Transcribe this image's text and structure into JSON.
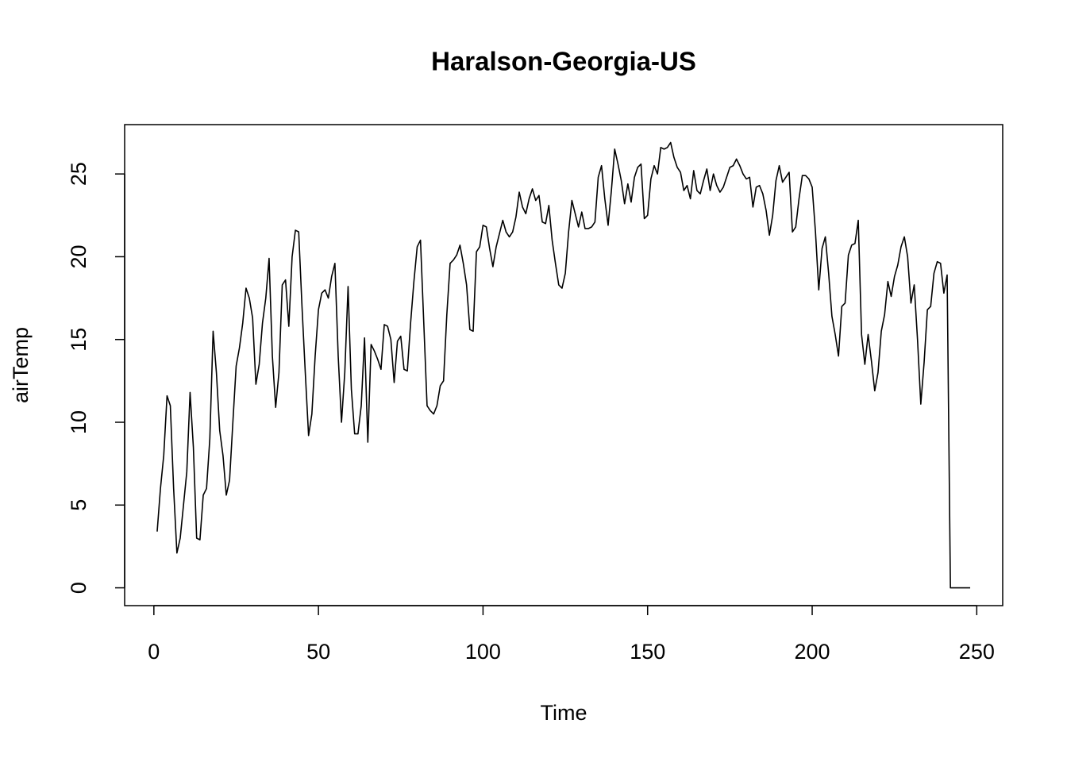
{
  "chart_data": {
    "type": "line",
    "title": "Haralson-Georgia-US",
    "x_label": "Time",
    "y_label": "airTemp",
    "x": [
      1,
      2,
      3,
      4,
      5,
      6,
      7,
      8,
      9,
      10,
      11,
      12,
      13,
      14,
      15,
      16,
      17,
      18,
      19,
      20,
      21,
      22,
      23,
      24,
      25,
      26,
      27,
      28,
      29,
      30,
      31,
      32,
      33,
      34,
      35,
      36,
      37,
      38,
      39,
      40,
      41,
      42,
      43,
      44,
      45,
      46,
      47,
      48,
      49,
      50,
      51,
      52,
      53,
      54,
      55,
      56,
      57,
      58,
      59,
      60,
      61,
      62,
      63,
      64,
      65,
      66,
      67,
      68,
      69,
      70,
      71,
      72,
      73,
      74,
      75,
      76,
      77,
      78,
      79,
      80,
      81,
      82,
      83,
      84,
      85,
      86,
      87,
      88,
      89,
      90,
      91,
      92,
      93,
      94,
      95,
      96,
      97,
      98,
      99,
      100,
      101,
      102,
      103,
      104,
      105,
      106,
      107,
      108,
      109,
      110,
      111,
      112,
      113,
      114,
      115,
      116,
      117,
      118,
      119,
      120,
      121,
      122,
      123,
      124,
      125,
      126,
      127,
      128,
      129,
      130,
      131,
      132,
      133,
      134,
      135,
      136,
      137,
      138,
      139,
      140,
      141,
      142,
      143,
      144,
      145,
      146,
      147,
      148,
      149,
      150,
      151,
      152,
      153,
      154,
      155,
      156,
      157,
      158,
      159,
      160,
      161,
      162,
      163,
      164,
      165,
      166,
      167,
      168,
      169,
      170,
      171,
      172,
      173,
      174,
      175,
      176,
      177,
      178,
      179,
      180,
      181,
      182,
      183,
      184,
      185,
      186,
      187,
      188,
      189,
      190,
      191,
      192,
      193,
      194,
      195,
      196,
      197,
      198,
      199,
      200,
      201,
      202,
      203,
      204,
      205,
      206,
      207,
      208,
      209,
      210,
      211,
      212,
      213,
      214,
      215,
      216,
      217,
      218,
      219,
      220,
      221,
      222,
      223,
      224,
      225,
      226,
      227,
      228,
      229,
      230,
      231,
      232,
      233,
      234,
      235,
      236,
      237,
      238,
      239,
      240,
      241,
      242,
      243,
      244,
      245,
      246,
      247,
      248
    ],
    "series": [
      {
        "name": "airTemp",
        "color": "#000000",
        "values": [
          3.4,
          6,
          8,
          11.6,
          11,
          6,
          2.1,
          3,
          5,
          7,
          11.8,
          8.5,
          3,
          2.9,
          5.6,
          6,
          9,
          15.5,
          13,
          9.5,
          8,
          5.6,
          6.5,
          10,
          13.4,
          14.5,
          16,
          18.1,
          17.5,
          16.3,
          12.3,
          13.5,
          16,
          17.5,
          19.9,
          14,
          10.9,
          13,
          18.3,
          18.6,
          15.8,
          20,
          21.6,
          21.5,
          17,
          13,
          9.2,
          10.5,
          14,
          16.8,
          17.8,
          18,
          17.5,
          18.8,
          19.6,
          14,
          10,
          13,
          18.2,
          12,
          9.3,
          9.3,
          11,
          15.1,
          8.8,
          14.7,
          14.3,
          13.8,
          13.2,
          15.9,
          15.8,
          15,
          12.4,
          14.9,
          15.2,
          13.2,
          13.1,
          16,
          18.5,
          20.6,
          21,
          16,
          11,
          10.7,
          10.5,
          11,
          12.2,
          12.5,
          16.5,
          19.6,
          19.8,
          20.1,
          20.7,
          19.6,
          18.3,
          15.6,
          15.5,
          20.3,
          20.6,
          21.9,
          21.8,
          20.5,
          19.4,
          20.6,
          21.4,
          22.2,
          21.5,
          21.2,
          21.5,
          22.4,
          23.9,
          23,
          22.6,
          23.5,
          24.1,
          23.4,
          23.7,
          22.1,
          22,
          23.1,
          21,
          19.6,
          18.3,
          18.1,
          19,
          21.5,
          23.4,
          22.6,
          21.8,
          22.7,
          21.7,
          21.7,
          21.8,
          22.1,
          24.8,
          25.5,
          23.5,
          21.9,
          24,
          26.5,
          25.6,
          24.6,
          23.2,
          24.4,
          23.3,
          24.8,
          25.4,
          25.6,
          22.3,
          22.5,
          24.7,
          25.5,
          25,
          26.6,
          26.5,
          26.6,
          26.9,
          26,
          25.4,
          25.1,
          24,
          24.3,
          23.5,
          25.2,
          24,
          23.8,
          24.6,
          25.3,
          24,
          25,
          24.3,
          23.9,
          24.2,
          24.8,
          25.4,
          25.5,
          25.9,
          25.5,
          25,
          24.7,
          24.8,
          23,
          24.2,
          24.3,
          23.8,
          22.8,
          21.3,
          22.5,
          24.6,
          25.5,
          24.5,
          24.8,
          25.1,
          21.5,
          21.8,
          23.5,
          24.9,
          24.9,
          24.7,
          24.2,
          21.5,
          18,
          20.5,
          21.2,
          19,
          16.4,
          15.3,
          14,
          17,
          17.2,
          20.1,
          20.7,
          20.8,
          22.2,
          15.3,
          13.5,
          15.3,
          13.7,
          11.9,
          13,
          15.5,
          16.5,
          18.5,
          17.6,
          18.8,
          19.5,
          20.6,
          21.2,
          20,
          17.2,
          18.3,
          15,
          11.1,
          13.6,
          16.8,
          17,
          19,
          19.7,
          19.6,
          17.8,
          18.9,
          0,
          0,
          0,
          0,
          0,
          0,
          0
        ]
      }
    ],
    "xlim": [
      -8.88,
      257.88
    ],
    "ylim": [
      -1.076,
      27.98
    ],
    "xticks": [
      0,
      50,
      100,
      150,
      200,
      250
    ],
    "yticks": [
      0,
      5,
      10,
      15,
      20,
      25
    ]
  }
}
